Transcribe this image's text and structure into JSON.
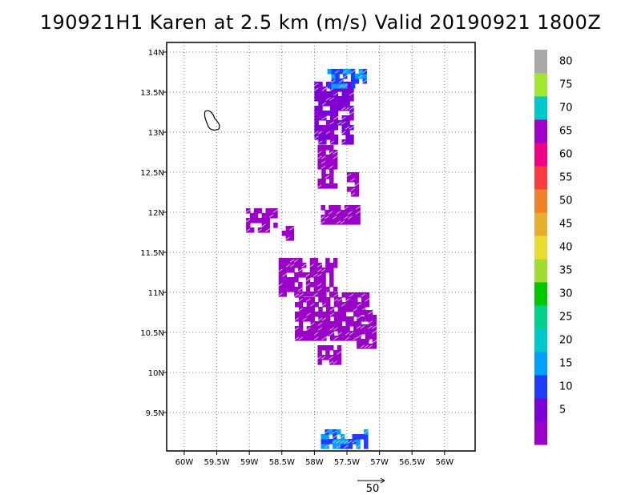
{
  "chart_data": {
    "type": "heatmap",
    "title": "190921H1 Karen at 2.5 km (m/s) Valid 20190921  1800Z",
    "x_ticks": [
      "60W",
      "59.5W",
      "59W",
      "58.5W",
      "58W",
      "57.5W",
      "57W",
      "56.5W",
      "56W"
    ],
    "x_values": [
      -60,
      -59.5,
      -59,
      -58.5,
      -58,
      -57.5,
      -57,
      -56.5,
      -56
    ],
    "y_ticks": [
      "9.5N",
      "10N",
      "10.5N",
      "11N",
      "11.5N",
      "12N",
      "12.5N",
      "13N",
      "13.5N",
      "14N"
    ],
    "y_values": [
      9.5,
      10,
      10.5,
      11,
      11.5,
      12,
      12.5,
      13,
      13.5,
      14
    ],
    "xlim": [
      -60.27,
      -55.53
    ],
    "ylim": [
      9.02,
      14.12
    ],
    "grid": true,
    "colorbar": {
      "labels": [
        "5",
        "10",
        "15",
        "20",
        "25",
        "30",
        "35",
        "40",
        "45",
        "50",
        "55",
        "60",
        "65",
        "70",
        "75",
        "80"
      ],
      "colors": [
        "#9b00c8",
        "#7a00d6",
        "#1e3cff",
        "#00a0ff",
        "#00c8c8",
        "#00d28c",
        "#00c800",
        "#a0dc32",
        "#e6dc32",
        "#e6af2d",
        "#f08228",
        "#fa3c3c",
        "#f00082",
        "#a000c8",
        "#00c8c8",
        "#a0e632",
        "#aaaaaa"
      ]
    },
    "reference_vector": "50",
    "wind_regions": [
      {
        "name": "north-blue",
        "bins": 2,
        "lon": [
          -58.0,
          -57.4
        ],
        "lat": [
          12.85,
          13.6
        ]
      },
      {
        "name": "north-cyan",
        "bins": 3,
        "lon": [
          -57.8,
          -57.25
        ],
        "lat": [
          13.55,
          13.75
        ]
      },
      {
        "name": "mid-purple-1",
        "bins": 1,
        "lon": [
          -57.95,
          -57.65
        ],
        "lat": [
          12.3,
          12.8
        ]
      },
      {
        "name": "mid-purple-2",
        "bins": 1,
        "lon": [
          -57.5,
          -57.35
        ],
        "lat": [
          12.2,
          12.45
        ]
      },
      {
        "name": "mid-purple-3",
        "bins": 1,
        "lon": [
          -57.9,
          -57.35
        ],
        "lat": [
          11.85,
          12.05
        ]
      },
      {
        "name": "west-purple",
        "bins": 1,
        "lon": [
          -59.05,
          -58.6
        ],
        "lat": [
          11.75,
          12.05
        ]
      },
      {
        "name": "west-purple-2",
        "bins": 1,
        "lon": [
          -58.5,
          -58.3
        ],
        "lat": [
          11.65,
          11.8
        ]
      },
      {
        "name": "south-purple-1",
        "bins": 1,
        "lon": [
          -58.55,
          -57.65
        ],
        "lat": [
          10.95,
          11.4
        ]
      },
      {
        "name": "south-purple-2",
        "bins": 1,
        "lon": [
          -58.3,
          -57.2
        ],
        "lat": [
          10.4,
          10.95
        ]
      },
      {
        "name": "south-purple-3",
        "bins": 1,
        "lon": [
          -57.35,
          -57.05
        ],
        "lat": [
          10.3,
          10.75
        ]
      },
      {
        "name": "south-purple-4",
        "bins": 1,
        "lon": [
          -57.95,
          -57.6
        ],
        "lat": [
          10.1,
          10.3
        ]
      },
      {
        "name": "bottom-cyan",
        "bins": 3,
        "lon": [
          -57.9,
          -57.2
        ],
        "lat": [
          9.05,
          9.25
        ]
      }
    ]
  }
}
